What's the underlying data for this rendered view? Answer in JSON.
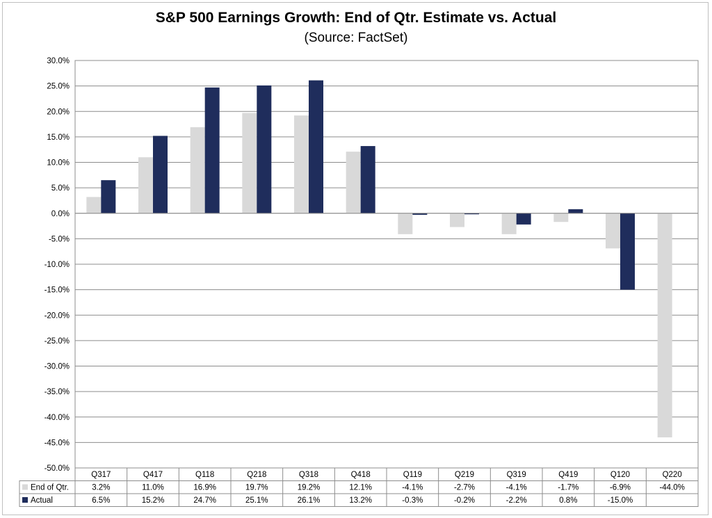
{
  "chart_data": {
    "type": "bar",
    "title": "S&P 500 Earnings Growth:  End of Qtr. Estimate vs. Actual",
    "subtitle": "(Source: FactSet)",
    "categories": [
      "Q317",
      "Q417",
      "Q118",
      "Q218",
      "Q318",
      "Q418",
      "Q119",
      "Q219",
      "Q319",
      "Q419",
      "Q120",
      "Q220"
    ],
    "series": [
      {
        "name": "End of Qtr.",
        "color": "#d9d9d9",
        "values": [
          3.2,
          11.0,
          16.9,
          19.7,
          19.2,
          12.1,
          -4.1,
          -2.7,
          -4.1,
          -1.7,
          -6.9,
          -44.0
        ],
        "labels": [
          "3.2%",
          "11.0%",
          "16.9%",
          "19.7%",
          "19.2%",
          "12.1%",
          "-4.1%",
          "-2.7%",
          "-4.1%",
          "-1.7%",
          "-6.9%",
          "-44.0%"
        ]
      },
      {
        "name": "Actual",
        "color": "#1f2d5c",
        "values": [
          6.5,
          15.2,
          24.7,
          25.1,
          26.1,
          13.2,
          -0.3,
          -0.2,
          -2.2,
          0.8,
          -15.0,
          null
        ],
        "labels": [
          "6.5%",
          "15.2%",
          "24.7%",
          "25.1%",
          "26.1%",
          "13.2%",
          "-0.3%",
          "-0.2%",
          "-2.2%",
          "0.8%",
          "-15.0%",
          ""
        ]
      }
    ],
    "ylim": [
      -50,
      30
    ],
    "ytick_step": 5,
    "ytick_labels": [
      "30.0%",
      "25.0%",
      "20.0%",
      "15.0%",
      "10.0%",
      "5.0%",
      "0.0%",
      "-5.0%",
      "-10.0%",
      "-15.0%",
      "-20.0%",
      "-25.0%",
      "-30.0%",
      "-35.0%",
      "-40.0%",
      "-45.0%",
      "-50.0%"
    ],
    "grid": true,
    "legend": "data-table"
  }
}
